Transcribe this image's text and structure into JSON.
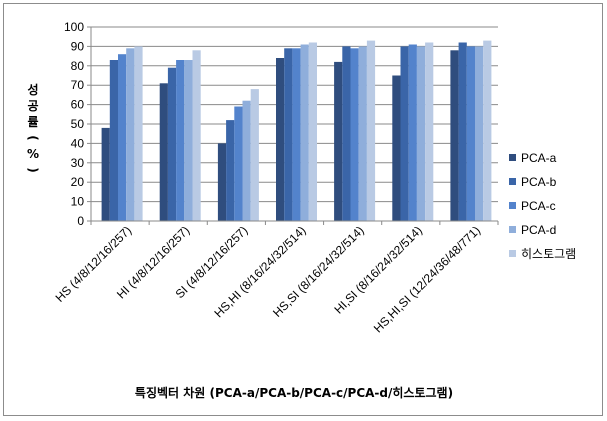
{
  "chart_data": {
    "type": "bar",
    "categories": [
      "HS (4/8/12/16/257)",
      "HI (4/8/12/16/257)",
      "SI (4/8/12/16/257)",
      "HS,HI (8/16/24/32/514)",
      "HS,SI (8/16/24/32/514)",
      "HI,SI (8/16/24/32/514)",
      "HS,HI,SI (12/24/36/48/771)"
    ],
    "series": [
      {
        "name": "PCA-a",
        "color": "#2f4d7e",
        "values": [
          48,
          71,
          40,
          84,
          82,
          75,
          88
        ]
      },
      {
        "name": "PCA-b",
        "color": "#3a65a8",
        "values": [
          83,
          79,
          52,
          89,
          90,
          90,
          92
        ]
      },
      {
        "name": "PCA-c",
        "color": "#5383cc",
        "values": [
          86,
          83,
          59,
          89,
          89,
          91,
          90
        ]
      },
      {
        "name": "PCA-d",
        "color": "#8faedb",
        "values": [
          89,
          83,
          62,
          91,
          90,
          90,
          90
        ]
      },
      {
        "name": "히스토그램",
        "color": "#b9cae4",
        "values": [
          90,
          88,
          68,
          92,
          93,
          92,
          93
        ]
      }
    ],
    "ylabel": "성공률(%)",
    "ylabel_chars": [
      "성",
      "공",
      "률",
      "(",
      "%",
      ")"
    ],
    "xlabel": "특징벡터 차원 (PCA-a/PCA-b/PCA-c/PCA-d/히스토그램)",
    "ylim": [
      0,
      100
    ],
    "yticks": [
      0,
      10,
      20,
      30,
      40,
      50,
      60,
      70,
      80,
      90,
      100
    ],
    "grid": true,
    "legend_position": "right"
  }
}
